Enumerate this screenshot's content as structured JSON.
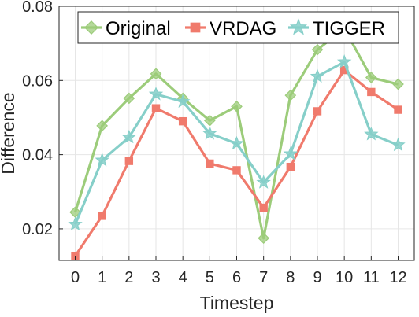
{
  "chart_data": {
    "type": "line",
    "title": "",
    "xlabel": "Timestep",
    "ylabel": "Difference",
    "x": [
      0,
      1,
      2,
      3,
      4,
      5,
      6,
      7,
      8,
      9,
      10,
      11,
      12
    ],
    "xticks": [
      "0",
      "1",
      "2",
      "3",
      "4",
      "5",
      "6",
      "7",
      "8",
      "9",
      "10",
      "11",
      "12"
    ],
    "yticks": [
      "0.02",
      "0.04",
      "0.06",
      "0.08"
    ],
    "ytick_values": [
      0.02,
      0.04,
      0.06,
      0.08
    ],
    "xlim": [
      -0.6,
      12.6
    ],
    "ylim": [
      0.0115,
      0.08
    ],
    "grid": true,
    "legend": {
      "placement": "top",
      "orientation": "horizontal"
    },
    "series": [
      {
        "name": "Original",
        "color": "#9ccc7a",
        "marker": "diamond",
        "values": [
          0.0245,
          0.0478,
          0.0552,
          0.0618,
          0.0552,
          0.0492,
          0.053,
          0.0175,
          0.056,
          0.0683,
          0.074,
          0.0608,
          0.059
        ]
      },
      {
        "name": "VRDAG",
        "color": "#f07a6c",
        "marker": "square",
        "values": [
          0.0127,
          0.0235,
          0.0383,
          0.0525,
          0.049,
          0.0376,
          0.0358,
          0.0257,
          0.0367,
          0.0517,
          0.0628,
          0.0569,
          0.0521
        ]
      },
      {
        "name": "TIGGER",
        "color": "#86cfc9",
        "marker": "star",
        "values": [
          0.0212,
          0.0385,
          0.0447,
          0.0563,
          0.0543,
          0.0457,
          0.043,
          0.0325,
          0.0402,
          0.0611,
          0.065,
          0.0455,
          0.0426
        ]
      }
    ]
  }
}
